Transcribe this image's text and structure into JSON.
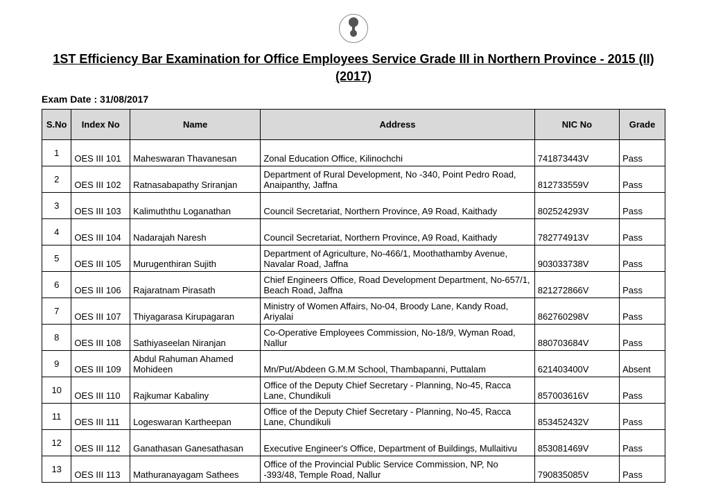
{
  "title": "1ST Efficiency Bar Examination for Office Employees Service Grade III in Northern Province - 2015 (II) (2017)",
  "exam_date_label": "Exam Date : 31/08/2017",
  "columns": {
    "sno": "S.No",
    "index_no": "Index No",
    "name": "Name",
    "address": "Address",
    "nic": "NIC No",
    "grade": "Grade"
  },
  "rows": [
    {
      "sno": "1",
      "index_no": "OES III 101",
      "name": "Maheswaran Thavanesan",
      "address": "Zonal Education Office, Kilinochchi",
      "nic": "741873443V",
      "grade": "Pass"
    },
    {
      "sno": "2",
      "index_no": "OES III 102",
      "name": "Ratnasabapathy Sriranjan",
      "address": "Department of Rural Development, No -340, Point Pedro Road, Anaipanthy, Jaffna",
      "nic": "812733559V",
      "grade": "Pass"
    },
    {
      "sno": "3",
      "index_no": "OES III 103",
      "name": "Kalimuththu Loganathan",
      "address": "Council Secretariat, Northern Province, A9 Road, Kaithady",
      "nic": "802524293V",
      "grade": "Pass"
    },
    {
      "sno": "4",
      "index_no": "OES III 104",
      "name": "Nadarajah Naresh",
      "address": "Council Secretariat, Northern Province, A9 Road, Kaithady",
      "nic": "782774913V",
      "grade": "Pass"
    },
    {
      "sno": "5",
      "index_no": "OES III 105",
      "name": "Murugenthiran Sujith",
      "address": "Department of Agriculture, No-466/1, Moothathamby Avenue, Navalar Road, Jaffna",
      "nic": "903033738V",
      "grade": "Pass"
    },
    {
      "sno": "6",
      "index_no": "OES III 106",
      "name": "Rajaratnam Pirasath",
      "address": "Chief Engineers Office, Road Development Department, No-657/1, Beach Road, Jaffna",
      "nic": "821272866V",
      "grade": "Pass"
    },
    {
      "sno": "7",
      "index_no": "OES III 107",
      "name": "Thiyagarasa Kirupagaran",
      "address": "Ministry of Women Affairs, No-04, Broody Lane, Kandy Road, Ariyalai",
      "nic": "862760298V",
      "grade": "Pass"
    },
    {
      "sno": "8",
      "index_no": "OES III 108",
      "name": "Sathiyaseelan Niranjan",
      "address": "Co-Operative Employees Commission, No-18/9, Wyman Road, Nallur",
      "nic": "880703684V",
      "grade": "Pass"
    },
    {
      "sno": "9",
      "index_no": "OES III 109",
      "name": "Abdul Rahuman Ahamed Mohideen",
      "address": "Mn/Put/Abdeen  G.M.M School, Thambapanni, Puttalam",
      "nic": "621403400V",
      "grade": "Absent"
    },
    {
      "sno": "10",
      "index_no": "OES III 110",
      "name": "Rajkumar Kabaliny",
      "address": "Office of the Deputy Chief Secretary - Planning, No-45, Racca Lane, Chundikuli",
      "nic": "857003616V",
      "grade": "Pass"
    },
    {
      "sno": "11",
      "index_no": "OES III 111",
      "name": "Logeswaran Kartheepan",
      "address": "Office of the Deputy Chief Secretary - Planning, No-45, Racca Lane, Chundikuli",
      "nic": "853452432V",
      "grade": "Pass"
    },
    {
      "sno": "12",
      "index_no": "OES III 112",
      "name": "Ganathasan Ganesathasan",
      "address": "Executive Engineer's Office, Department of Buildings, Mullaitivu",
      "nic": "853081469V",
      "grade": "Pass"
    },
    {
      "sno": "13",
      "index_no": "OES III 113",
      "name": "Mathuranayagam Sathees",
      "address": "Office of the Provincial Public Service Commission, NP, No -393/48, Temple Road, Nallur",
      "nic": "790835085V",
      "grade": "Pass"
    }
  ]
}
